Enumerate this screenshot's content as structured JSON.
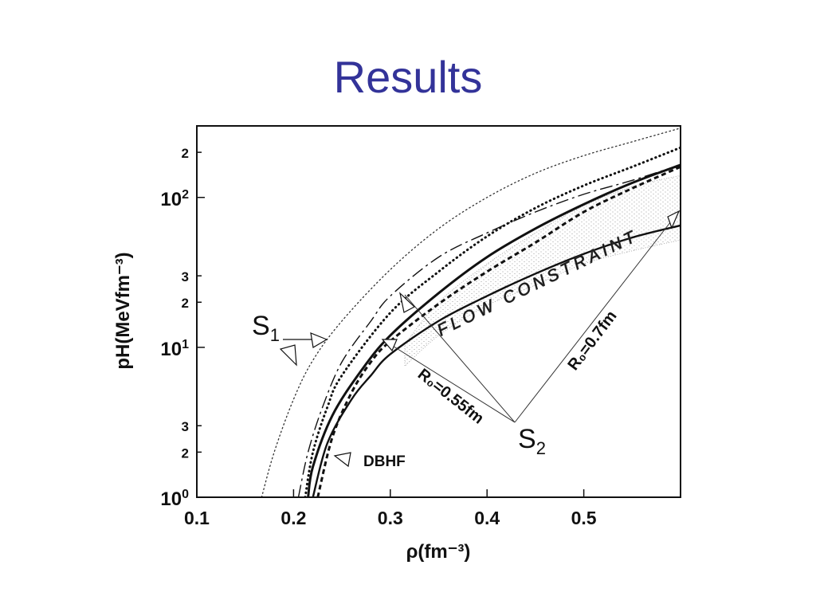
{
  "slide": {
    "title": "Results"
  },
  "colors": {
    "title": "#333399",
    "ink": "#111111",
    "band_fill": "#dddddd"
  },
  "chart_data": {
    "type": "line",
    "xlabel": "ρ(fm⁻³)",
    "ylabel": "pH(MeVfm⁻³)",
    "xlim": [
      0.1,
      0.6
    ],
    "ylim": [
      1,
      300
    ],
    "yscale": "log",
    "grid": false,
    "xticks": [
      {
        "value": 0.1,
        "label": "0.1"
      },
      {
        "value": 0.2,
        "label": "0.2"
      },
      {
        "value": 0.3,
        "label": "0.3"
      },
      {
        "value": 0.4,
        "label": "0.4"
      },
      {
        "value": 0.5,
        "label": "0.5"
      }
    ],
    "yticks": [
      {
        "value": 1,
        "base": "10",
        "exp": "0",
        "label": ""
      },
      {
        "value": 2,
        "base": "",
        "exp": "",
        "label": "2"
      },
      {
        "value": 3,
        "base": "",
        "exp": "",
        "label": "3"
      },
      {
        "value": 10,
        "base": "10",
        "exp": "1",
        "label": ""
      },
      {
        "value": 20,
        "base": "",
        "exp": "",
        "label": "2"
      },
      {
        "value": 30,
        "base": "",
        "exp": "",
        "label": "3"
      },
      {
        "value": 100,
        "base": "10",
        "exp": "2",
        "label": ""
      },
      {
        "value": 200,
        "base": "",
        "exp": "",
        "label": "2"
      }
    ],
    "band": {
      "label": "FLOW CONSTRAINT",
      "upper": [
        [
          0.315,
          10.5
        ],
        [
          0.35,
          20
        ],
        [
          0.4,
          36
        ],
        [
          0.45,
          58
        ],
        [
          0.5,
          88
        ],
        [
          0.55,
          118
        ],
        [
          0.6,
          140
        ]
      ],
      "lower": [
        [
          0.315,
          7.5
        ],
        [
          0.35,
          12
        ],
        [
          0.4,
          19
        ],
        [
          0.45,
          26
        ],
        [
          0.5,
          36
        ],
        [
          0.55,
          44
        ],
        [
          0.6,
          52
        ]
      ]
    },
    "series": [
      {
        "style": "dotted-thin",
        "points": [
          [
            0.167,
            1
          ],
          [
            0.18,
            2
          ],
          [
            0.2,
            4.5
          ],
          [
            0.22,
            8.2
          ],
          [
            0.25,
            15
          ],
          [
            0.3,
            33
          ],
          [
            0.35,
            62
          ],
          [
            0.4,
            100
          ],
          [
            0.45,
            145
          ],
          [
            0.5,
            190
          ],
          [
            0.55,
            235
          ],
          [
            0.6,
            290
          ]
        ]
      },
      {
        "style": "dashdot",
        "points": [
          [
            0.205,
            1
          ],
          [
            0.215,
            2
          ],
          [
            0.23,
            4
          ],
          [
            0.25,
            8
          ],
          [
            0.28,
            15
          ],
          [
            0.3,
            22
          ],
          [
            0.35,
            40
          ],
          [
            0.4,
            58
          ],
          [
            0.45,
            80
          ],
          [
            0.5,
            105
          ],
          [
            0.55,
            130
          ],
          [
            0.6,
            165
          ]
        ]
      },
      {
        "style": "dotted-thick",
        "points": [
          [
            0.212,
            1
          ],
          [
            0.22,
            2
          ],
          [
            0.235,
            4
          ],
          [
            0.25,
            6.5
          ],
          [
            0.3,
            17
          ],
          [
            0.35,
            32
          ],
          [
            0.4,
            55
          ],
          [
            0.45,
            85
          ],
          [
            0.5,
            120
          ],
          [
            0.55,
            160
          ],
          [
            0.6,
            215
          ]
        ]
      },
      {
        "style": "solid-thick",
        "label": "R₀=0.55fm",
        "points": [
          [
            0.215,
            1
          ],
          [
            0.22,
            1.6
          ],
          [
            0.24,
            3.5
          ],
          [
            0.27,
            7
          ],
          [
            0.3,
            12
          ],
          [
            0.35,
            23
          ],
          [
            0.4,
            40
          ],
          [
            0.45,
            62
          ],
          [
            0.5,
            90
          ],
          [
            0.55,
            125
          ],
          [
            0.6,
            165
          ]
        ]
      },
      {
        "style": "dashed-thick",
        "label": "DBHF",
        "points": [
          [
            0.225,
            1
          ],
          [
            0.24,
            2.5
          ],
          [
            0.26,
            5
          ],
          [
            0.28,
            8
          ],
          [
            0.3,
            11
          ],
          [
            0.35,
            19.5
          ],
          [
            0.4,
            32
          ],
          [
            0.45,
            50
          ],
          [
            0.5,
            80
          ],
          [
            0.55,
            115
          ],
          [
            0.6,
            160
          ]
        ]
      },
      {
        "style": "solid-medium",
        "label": "R₀=0.7fm",
        "points": [
          [
            0.22,
            1
          ],
          [
            0.235,
            2.3
          ],
          [
            0.26,
            4.5
          ],
          [
            0.28,
            6.5
          ],
          [
            0.3,
            9
          ],
          [
            0.35,
            15
          ],
          [
            0.4,
            22
          ],
          [
            0.45,
            31
          ],
          [
            0.5,
            42
          ],
          [
            0.55,
            54
          ],
          [
            0.6,
            65
          ]
        ]
      }
    ],
    "annotations": {
      "s1_label": "S",
      "s1_sub": "1",
      "s2_label": "S",
      "s2_sub": "2",
      "r055": "R₀=0.55fm",
      "r07": "R₀=0.7fm",
      "dbhf": "DBHF",
      "flow": "FLOW CONSTRAINT"
    }
  }
}
